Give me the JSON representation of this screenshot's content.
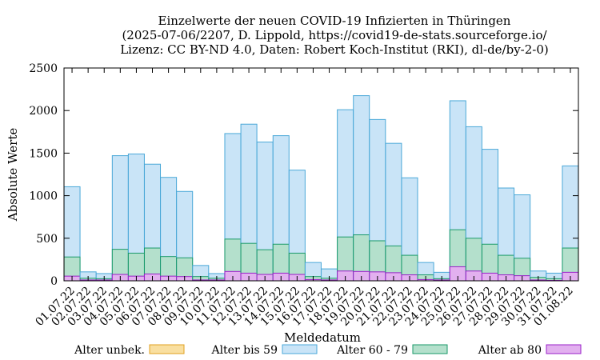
{
  "chart_data": {
    "type": "bar",
    "stacked": "overlay",
    "title": [
      "Einzelwerte der neuen COVID-19 Infizierten in Thüringen",
      "(2025-07-06/2207, D. Lippold, https://covid19-de-stats.sourceforge.io/",
      "Lizenz: CC BY-ND 4.0, Daten: Robert Koch-Institut (RKI), dl-de/by-2-0)"
    ],
    "xlabel": "Meldedatum",
    "ylabel": "Absolute Werte",
    "ylim": [
      0,
      2500
    ],
    "yticks": [
      0,
      500,
      1000,
      1500,
      2000,
      2500
    ],
    "grid": false,
    "legend_position": "bottom",
    "categories": [
      "01.07.22",
      "02.07.22",
      "03.07.22",
      "04.07.22",
      "05.07.22",
      "06.07.22",
      "07.07.22",
      "08.07.22",
      "09.07.22",
      "10.07.22",
      "11.07.22",
      "12.07.22",
      "13.07.22",
      "14.07.22",
      "15.07.22",
      "16.07.22",
      "17.07.22",
      "18.07.22",
      "19.07.22",
      "20.07.22",
      "21.07.22",
      "22.07.22",
      "23.07.22",
      "24.07.22",
      "25.07.22",
      "26.07.22",
      "27.07.22",
      "28.07.22",
      "29.07.22",
      "30.07.22",
      "31.07.22",
      "01.08.22"
    ],
    "series": [
      {
        "name": "Alter unbek.",
        "fill": "#f9dfa0",
        "stroke": "#e0a020",
        "values": [
          0,
          0,
          0,
          0,
          0,
          0,
          0,
          0,
          0,
          0,
          0,
          0,
          0,
          0,
          0,
          0,
          0,
          0,
          0,
          0,
          0,
          0,
          0,
          0,
          0,
          0,
          0,
          0,
          0,
          0,
          0,
          0
        ]
      },
      {
        "name": "Alter bis 59",
        "fill": "#c9e4f7",
        "stroke": "#4aa8d8",
        "values": [
          1105,
          105,
          85,
          1470,
          1490,
          1370,
          1215,
          1050,
          180,
          85,
          1730,
          1840,
          1630,
          1705,
          1300,
          215,
          140,
          2010,
          2175,
          1895,
          1615,
          1210,
          215,
          100,
          2115,
          1810,
          1545,
          1090,
          1010,
          115,
          90,
          1350
        ]
      },
      {
        "name": "Alter 60 - 79",
        "fill": "#b4e0cc",
        "stroke": "#1a9a6a",
        "values": [
          280,
          30,
          25,
          370,
          325,
          385,
          285,
          270,
          50,
          30,
          490,
          440,
          365,
          430,
          325,
          50,
          30,
          515,
          540,
          470,
          410,
          300,
          70,
          25,
          600,
          500,
          430,
          300,
          265,
          40,
          25,
          385
        ]
      },
      {
        "name": "Alter ab 80",
        "fill": "#e2b0ef",
        "stroke": "#9a20c8",
        "values": [
          55,
          10,
          10,
          75,
          55,
          80,
          55,
          50,
          10,
          10,
          110,
          90,
          75,
          90,
          75,
          15,
          10,
          115,
          110,
          105,
          95,
          70,
          15,
          10,
          165,
          115,
          90,
          70,
          60,
          10,
          5,
          100
        ]
      }
    ]
  }
}
